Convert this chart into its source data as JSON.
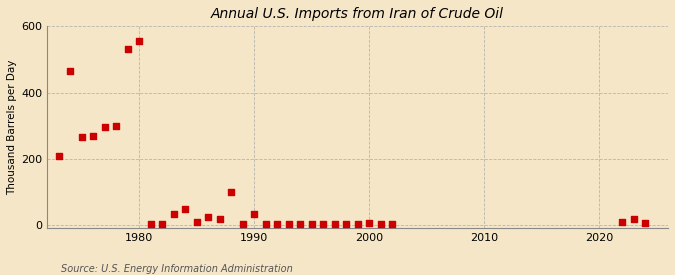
{
  "title": "Annual U.S. Imports from Iran of Crude Oil",
  "ylabel": "Thousand Barrels per Day",
  "source": "Source: U.S. Energy Information Administration",
  "background_color": "#f5e6c8",
  "plot_background_color": "#fdf5e6",
  "grid_color": "#aaaaaa",
  "marker_color": "#cc0000",
  "years": [
    1973,
    1974,
    1975,
    1976,
    1977,
    1978,
    1979,
    1980,
    1981,
    1982,
    1983,
    1984,
    1985,
    1986,
    1987,
    1988,
    1989,
    1990,
    1991,
    1992,
    1993,
    1994,
    1995,
    1996,
    1997,
    1998,
    1999,
    2000,
    2001,
    2002,
    2022,
    2023,
    2024
  ],
  "values": [
    210,
    465,
    265,
    270,
    295,
    300,
    530,
    555,
    4,
    2,
    35,
    50,
    8,
    25,
    20,
    100,
    2,
    35,
    2,
    2,
    2,
    2,
    2,
    2,
    2,
    2,
    2,
    5,
    2,
    2,
    10,
    18,
    5
  ],
  "xlim": [
    1972,
    2026
  ],
  "ylim": [
    -10,
    600
  ],
  "yticks": [
    0,
    200,
    400,
    600
  ],
  "xticks": [
    1980,
    1990,
    2000,
    2010,
    2020
  ]
}
